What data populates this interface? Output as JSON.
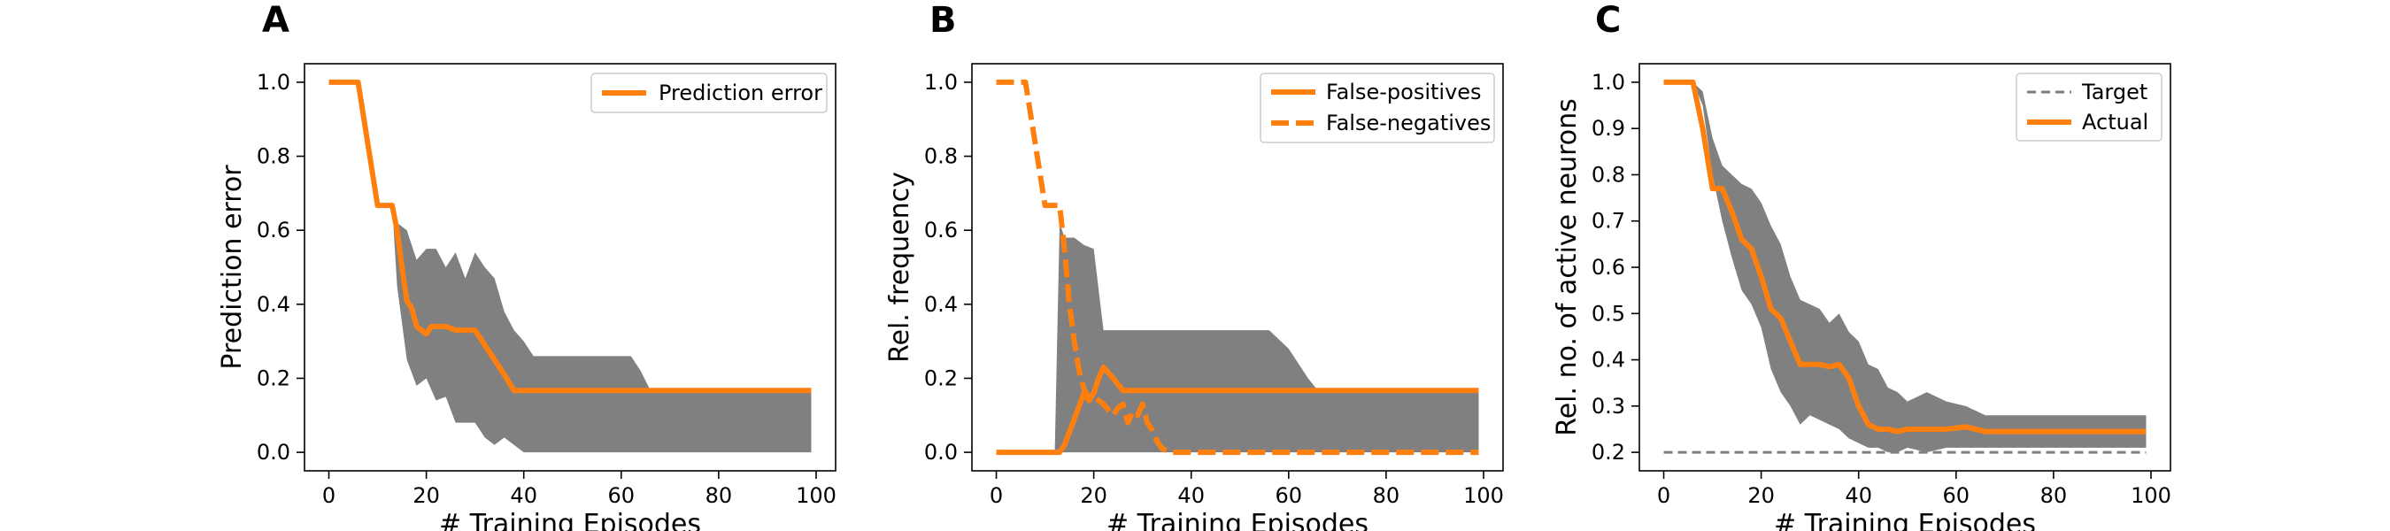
{
  "chart_data": [
    {
      "panel": "A",
      "type": "line",
      "xlabel": "# Training Episodes",
      "ylabel": "Prediction error",
      "xlim": [
        -5,
        104
      ],
      "ylim": [
        -0.05,
        1.05
      ],
      "xticks": [
        0,
        20,
        40,
        60,
        80,
        100
      ],
      "yticks": [
        0.0,
        0.2,
        0.4,
        0.6,
        0.8,
        1.0
      ],
      "ytick_labels": [
        "0.0",
        "0.2",
        "0.4",
        "0.6",
        "0.8",
        "1.0"
      ],
      "legend": "top-right",
      "band": {
        "x": [
          0,
          6,
          10,
          12,
          13,
          14,
          16,
          18,
          20,
          22,
          24,
          26,
          28,
          30,
          32,
          34,
          36,
          38,
          40,
          42,
          46,
          50,
          56,
          62,
          64,
          66,
          70,
          80,
          90,
          99
        ],
        "upper": [
          1,
          1,
          0.667,
          0.667,
          0.667,
          0.62,
          0.6,
          0.52,
          0.55,
          0.55,
          0.5,
          0.54,
          0.47,
          0.54,
          0.5,
          0.47,
          0.38,
          0.33,
          0.3,
          0.26,
          0.26,
          0.26,
          0.26,
          0.26,
          0.22,
          0.167,
          0.167,
          0.167,
          0.167,
          0.167
        ],
        "lower": [
          1,
          1,
          0.667,
          0.667,
          0.667,
          0.45,
          0.25,
          0.18,
          0.2,
          0.14,
          0.15,
          0.08,
          0.08,
          0.08,
          0.04,
          0.02,
          0.04,
          0.02,
          0,
          0,
          0,
          0,
          0,
          0,
          0,
          0,
          0,
          0,
          0,
          0
        ]
      },
      "series": [
        {
          "name": "Prediction error",
          "style": "solid",
          "x": [
            0,
            6,
            10,
            12,
            13,
            14,
            15,
            16,
            17,
            18,
            19,
            20,
            21,
            22,
            24,
            26,
            28,
            30,
            32,
            34,
            36,
            38,
            40,
            50,
            60,
            70,
            80,
            90,
            99
          ],
          "y": [
            1,
            1,
            0.667,
            0.667,
            0.667,
            0.6,
            0.5,
            0.41,
            0.39,
            0.34,
            0.33,
            0.32,
            0.34,
            0.34,
            0.34,
            0.33,
            0.33,
            0.33,
            0.29,
            0.25,
            0.21,
            0.167,
            0.167,
            0.167,
            0.167,
            0.167,
            0.167,
            0.167,
            0.167
          ]
        }
      ]
    },
    {
      "panel": "B",
      "type": "line",
      "xlabel": "# Training Episodes",
      "ylabel": "Rel. frequency",
      "xlim": [
        -5,
        104
      ],
      "ylim": [
        -0.05,
        1.05
      ],
      "xticks": [
        0,
        20,
        40,
        60,
        80,
        100
      ],
      "yticks": [
        0.0,
        0.2,
        0.4,
        0.6,
        0.8,
        1.0
      ],
      "ytick_labels": [
        "0.0",
        "0.2",
        "0.4",
        "0.6",
        "0.8",
        "1.0"
      ],
      "legend": "top-right",
      "band": {
        "x": [
          0,
          12,
          13,
          14,
          16,
          18,
          20,
          22,
          24,
          26,
          30,
          40,
          50,
          56,
          60,
          64,
          66,
          70,
          80,
          90,
          99
        ],
        "upper": [
          0,
          0,
          0.62,
          0.58,
          0.58,
          0.56,
          0.55,
          0.33,
          0.33,
          0.33,
          0.33,
          0.33,
          0.33,
          0.33,
          0.28,
          0.2,
          0.167,
          0.167,
          0.167,
          0.167,
          0.167
        ],
        "lower": [
          0,
          0,
          0,
          0,
          0,
          0,
          0,
          0,
          0,
          0,
          0,
          0,
          0,
          0,
          0,
          0,
          0,
          0,
          0,
          0,
          0
        ]
      },
      "series": [
        {
          "name": "False-positives",
          "style": "solid",
          "x": [
            0,
            13,
            14,
            16,
            18,
            19,
            20,
            21,
            22,
            24,
            26,
            30,
            40,
            50,
            60,
            70,
            80,
            90,
            99
          ],
          "y": [
            0,
            0,
            0.02,
            0.09,
            0.16,
            0.14,
            0.16,
            0.2,
            0.23,
            0.2,
            0.167,
            0.167,
            0.167,
            0.167,
            0.167,
            0.167,
            0.167,
            0.167,
            0.167
          ]
        },
        {
          "name": "False-negatives",
          "style": "dashed",
          "x": [
            0,
            6,
            10,
            12,
            13,
            14,
            15,
            16,
            17,
            18,
            19,
            20,
            22,
            24,
            25,
            26,
            27,
            28,
            29,
            30,
            31,
            32,
            33,
            34,
            36,
            40,
            50,
            60,
            70,
            80,
            90,
            99
          ],
          "y": [
            1,
            1,
            0.667,
            0.667,
            0.667,
            0.55,
            0.4,
            0.3,
            0.22,
            0.17,
            0.15,
            0.15,
            0.13,
            0.1,
            0.12,
            0.13,
            0.08,
            0.11,
            0.1,
            0.13,
            0.08,
            0.06,
            0.03,
            0.01,
            0,
            0,
            0,
            0,
            0,
            0,
            0,
            0
          ]
        }
      ]
    },
    {
      "panel": "C",
      "type": "line",
      "xlabel": "# Training Episodes",
      "ylabel": "Rel. no. of active neurons",
      "xlim": [
        -5,
        104
      ],
      "ylim": [
        0.16,
        1.04
      ],
      "xticks": [
        0,
        20,
        40,
        60,
        80,
        100
      ],
      "yticks": [
        0.2,
        0.3,
        0.4,
        0.5,
        0.6,
        0.7,
        0.8,
        0.9,
        1.0
      ],
      "ytick_labels": [
        "0.2",
        "0.3",
        "0.4",
        "0.5",
        "0.6",
        "0.7",
        "0.8",
        "0.9",
        "1.0"
      ],
      "legend": "top-right",
      "band": {
        "x": [
          0,
          6,
          8,
          10,
          12,
          14,
          16,
          18,
          20,
          22,
          24,
          26,
          28,
          30,
          32,
          34,
          36,
          38,
          40,
          42,
          44,
          46,
          48,
          50,
          54,
          58,
          62,
          64,
          66,
          70,
          80,
          90,
          99
        ],
        "upper": [
          1,
          1,
          0.98,
          0.88,
          0.82,
          0.8,
          0.78,
          0.77,
          0.74,
          0.69,
          0.65,
          0.58,
          0.53,
          0.52,
          0.51,
          0.48,
          0.5,
          0.46,
          0.44,
          0.39,
          0.38,
          0.34,
          0.33,
          0.31,
          0.33,
          0.31,
          0.3,
          0.29,
          0.28,
          0.28,
          0.28,
          0.28,
          0.28
        ],
        "lower": [
          1,
          1,
          0.95,
          0.8,
          0.7,
          0.62,
          0.55,
          0.52,
          0.47,
          0.38,
          0.33,
          0.3,
          0.26,
          0.28,
          0.27,
          0.26,
          0.25,
          0.23,
          0.22,
          0.21,
          0.21,
          0.2,
          0.2,
          0.21,
          0.2,
          0.21,
          0.21,
          0.21,
          0.21,
          0.21,
          0.21,
          0.21,
          0.21
        ]
      },
      "series": [
        {
          "name": "Target",
          "style": "dashed-thin",
          "x": [
            0,
            99
          ],
          "y": [
            0.2,
            0.2
          ]
        },
        {
          "name": "Actual",
          "style": "solid",
          "x": [
            0,
            6,
            8,
            10,
            12,
            14,
            16,
            18,
            20,
            22,
            24,
            26,
            28,
            30,
            32,
            34,
            36,
            38,
            40,
            42,
            44,
            46,
            48,
            50,
            54,
            58,
            62,
            66,
            70,
            80,
            90,
            99
          ],
          "y": [
            1,
            1,
            0.9,
            0.77,
            0.77,
            0.72,
            0.66,
            0.64,
            0.58,
            0.51,
            0.49,
            0.44,
            0.39,
            0.39,
            0.39,
            0.385,
            0.39,
            0.36,
            0.3,
            0.26,
            0.25,
            0.25,
            0.245,
            0.25,
            0.25,
            0.25,
            0.255,
            0.245,
            0.245,
            0.245,
            0.245,
            0.245
          ]
        }
      ]
    }
  ],
  "colors": {
    "line": "#ff7f0e",
    "band": "#808080",
    "target": "#7f7f7f",
    "axis": "#000000"
  }
}
